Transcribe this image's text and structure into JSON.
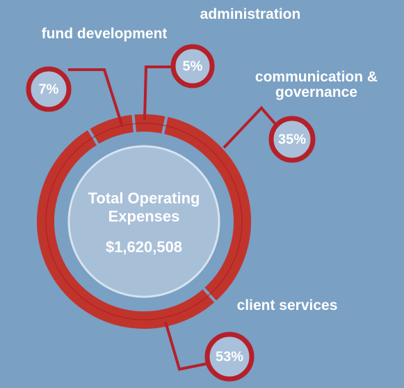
{
  "chart_data": {
    "type": "donut",
    "categories": [
      "fund development",
      "administration",
      "communication & governance",
      "client services"
    ],
    "values": [
      7,
      5,
      35,
      53
    ],
    "value_labels": [
      "7%",
      "5%",
      "35%",
      "53%"
    ],
    "color": "#c1342c",
    "center_label": "Total Operating Expenses",
    "total": {
      "value": 1620508,
      "label": "$1,620,508"
    }
  }
}
